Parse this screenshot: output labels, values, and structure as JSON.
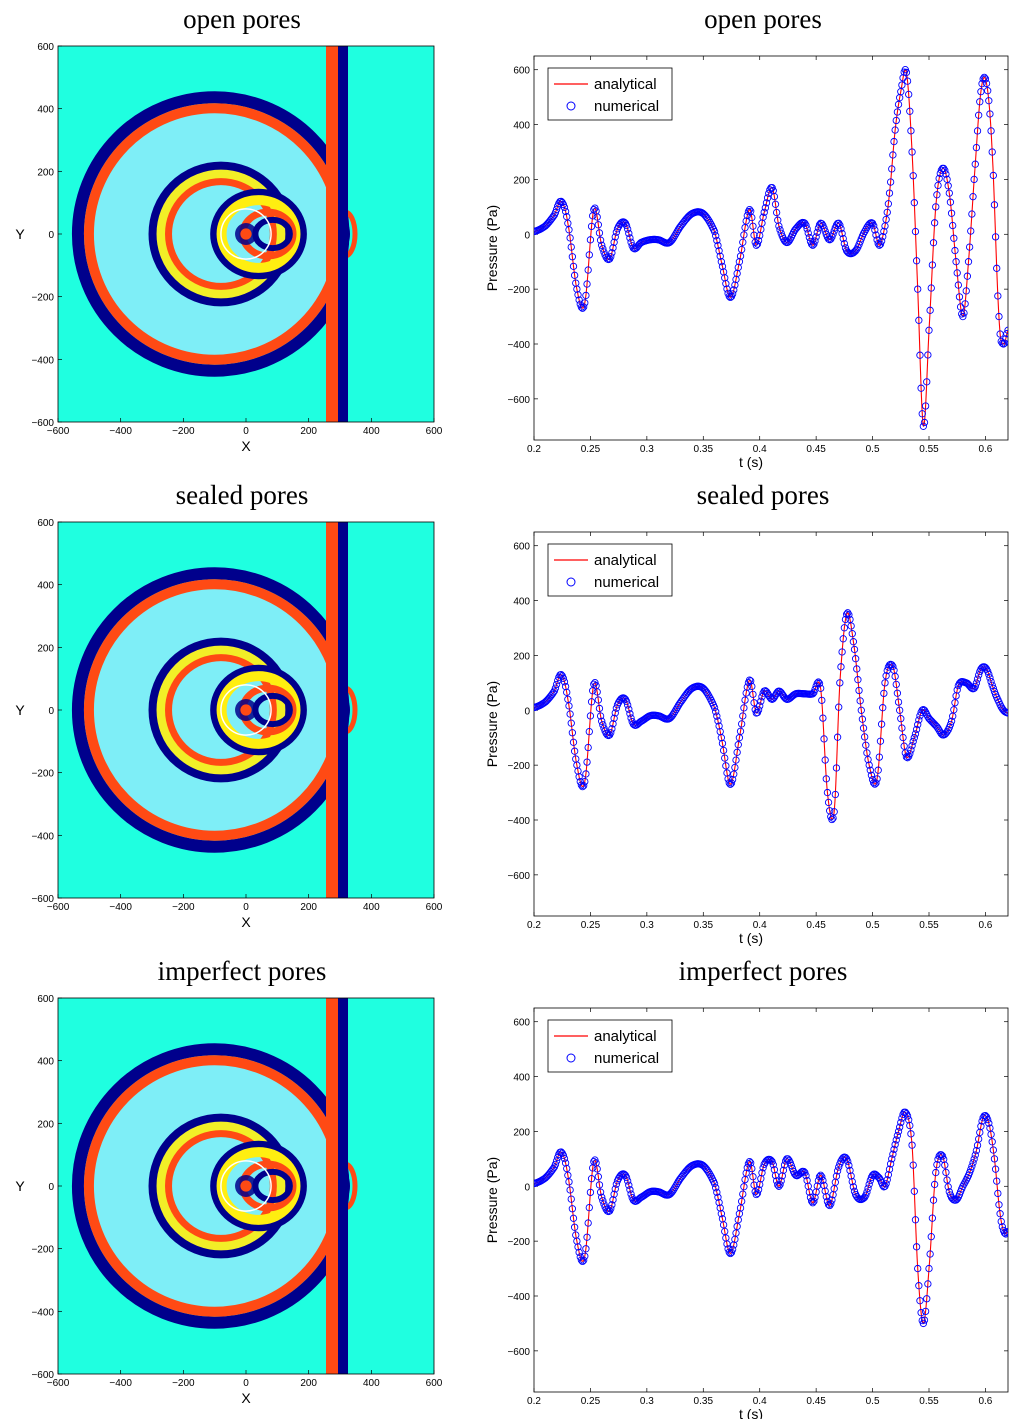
{
  "colors": {
    "analytical": "#ff0000",
    "numerical": "#0000ff",
    "field_background": "#1fffe0",
    "wavefront_red": "#ff4a14",
    "wavefront_navy": "#00008c",
    "field_yellow": "#ffee10",
    "field_lightblue": "#9fe8ff",
    "source_circle": "#ffffff"
  },
  "chart_data": [
    {
      "type": "heatmap",
      "title": "open pores",
      "xlabel": "X",
      "ylabel": "Y",
      "xlim": [
        -600,
        600
      ],
      "ylim": [
        -600,
        600
      ],
      "xticks": [
        -600,
        -400,
        -200,
        0,
        200,
        400,
        600
      ],
      "yticks": [
        -600,
        -400,
        -200,
        0,
        200,
        400,
        600
      ],
      "colormap": "jet",
      "interface_x": 300,
      "outer_wavefront_center": [
        -100,
        0
      ],
      "outer_wavefront_radius": 430,
      "inner_wavefront_radius": 245,
      "source_circle_center": [
        0,
        0
      ],
      "source_circle_radius": 80
    },
    {
      "type": "line",
      "title": "open pores",
      "xlabel": "t (s)",
      "ylabel": "Pressure (Pa)",
      "xlim": [
        0.2,
        0.62
      ],
      "ylim": [
        -750,
        650
      ],
      "xticks": [
        0.2,
        0.25,
        0.3,
        0.35,
        0.4,
        0.45,
        0.5,
        0.55,
        0.6
      ],
      "yticks": [
        -600,
        -400,
        -200,
        0,
        200,
        400,
        600
      ],
      "legend": "top-left",
      "series": [
        {
          "name": "analytical",
          "style": "line",
          "x": [
            0.2,
            0.21,
            0.218,
            0.224,
            0.23,
            0.238,
            0.245,
            0.253,
            0.26,
            0.267,
            0.274,
            0.281,
            0.288,
            0.295,
            0.303,
            0.31,
            0.32,
            0.33,
            0.34,
            0.35,
            0.36,
            0.366,
            0.374,
            0.382,
            0.391,
            0.397,
            0.404,
            0.411,
            0.417,
            0.424,
            0.432,
            0.44,
            0.447,
            0.454,
            0.462,
            0.47,
            0.477,
            0.485,
            0.493,
            0.5,
            0.506,
            0.511,
            0.515,
            0.52,
            0.525,
            0.53,
            0.535,
            0.54,
            0.545,
            0.55,
            0.556,
            0.562,
            0.568,
            0.574,
            0.58,
            0.585,
            0.59,
            0.596,
            0.601,
            0.606,
            0.612,
            0.616,
            0.62
          ],
          "y": [
            10,
            30,
            70,
            120,
            40,
            -200,
            -250,
            90,
            -40,
            -90,
            20,
            40,
            -50,
            -30,
            -20,
            -20,
            -30,
            30,
            75,
            75,
            10,
            -100,
            -230,
            -100,
            90,
            -40,
            80,
            170,
            30,
            -30,
            20,
            40,
            -40,
            40,
            -20,
            40,
            -60,
            -60,
            10,
            40,
            -40,
            30,
            150,
            380,
            520,
            590,
            300,
            -200,
            -700,
            -350,
            100,
            240,
            150,
            -100,
            -300,
            -100,
            200,
            520,
            550,
            300,
            -300,
            -400,
            -350
          ]
        },
        {
          "name": "numerical",
          "style": "markers-circle",
          "x": [
            0.2,
            0.21,
            0.218,
            0.224,
            0.23,
            0.238,
            0.245,
            0.253,
            0.26,
            0.267,
            0.274,
            0.281,
            0.288,
            0.295,
            0.303,
            0.31,
            0.32,
            0.33,
            0.34,
            0.35,
            0.36,
            0.366,
            0.374,
            0.382,
            0.391,
            0.397,
            0.404,
            0.411,
            0.417,
            0.424,
            0.432,
            0.44,
            0.447,
            0.454,
            0.462,
            0.47,
            0.477,
            0.485,
            0.493,
            0.5,
            0.506,
            0.511,
            0.515,
            0.52,
            0.525,
            0.53,
            0.535,
            0.54,
            0.545,
            0.55,
            0.556,
            0.562,
            0.568,
            0.574,
            0.58,
            0.585,
            0.59,
            0.596,
            0.601,
            0.606,
            0.612,
            0.616,
            0.62
          ],
          "y": [
            10,
            30,
            70,
            120,
            40,
            -200,
            -250,
            90,
            -40,
            -90,
            20,
            40,
            -50,
            -30,
            -20,
            -20,
            -30,
            30,
            75,
            75,
            10,
            -100,
            -230,
            -100,
            90,
            -40,
            80,
            170,
            30,
            -30,
            20,
            40,
            -40,
            40,
            -20,
            40,
            -60,
            -60,
            10,
            40,
            -40,
            30,
            150,
            380,
            520,
            590,
            300,
            -200,
            -700,
            -350,
            100,
            240,
            150,
            -100,
            -300,
            -100,
            200,
            520,
            550,
            300,
            -300,
            -400,
            -350
          ]
        }
      ]
    },
    {
      "type": "heatmap",
      "title": "sealed pores",
      "xlabel": "X",
      "ylabel": "Y",
      "xlim": [
        -600,
        600
      ],
      "ylim": [
        -600,
        600
      ],
      "xticks": [
        -600,
        -400,
        -200,
        0,
        200,
        400,
        600
      ],
      "yticks": [
        -600,
        -400,
        -200,
        0,
        200,
        400,
        600
      ],
      "colormap": "jet",
      "interface_x": 300,
      "outer_wavefront_center": [
        -100,
        0
      ],
      "outer_wavefront_radius": 430,
      "inner_wavefront_radius": 245,
      "source_circle_center": [
        0,
        0
      ],
      "source_circle_radius": 80
    },
    {
      "type": "line",
      "title": "sealed pores",
      "xlabel": "t (s)",
      "ylabel": "Pressure (Pa)",
      "xlim": [
        0.2,
        0.62
      ],
      "ylim": [
        -750,
        650
      ],
      "xticks": [
        0.2,
        0.25,
        0.3,
        0.35,
        0.4,
        0.45,
        0.5,
        0.55,
        0.6
      ],
      "yticks": [
        -600,
        -400,
        -200,
        0,
        200,
        400,
        600
      ],
      "legend": "top-left",
      "series": [
        {
          "name": "analytical",
          "style": "line",
          "x": [
            0.2,
            0.21,
            0.218,
            0.224,
            0.23,
            0.238,
            0.245,
            0.253,
            0.26,
            0.267,
            0.274,
            0.281,
            0.288,
            0.295,
            0.303,
            0.31,
            0.32,
            0.33,
            0.34,
            0.35,
            0.36,
            0.366,
            0.374,
            0.382,
            0.391,
            0.397,
            0.404,
            0.411,
            0.417,
            0.424,
            0.432,
            0.44,
            0.447,
            0.454,
            0.46,
            0.466,
            0.471,
            0.477,
            0.483,
            0.49,
            0.497,
            0.504,
            0.511,
            0.518,
            0.524,
            0.53,
            0.537,
            0.544,
            0.55,
            0.557,
            0.563,
            0.57,
            0.576,
            0.583,
            0.59,
            0.596,
            0.601,
            0.607,
            0.612,
            0.616,
            0.62
          ],
          "y": [
            10,
            30,
            70,
            130,
            40,
            -200,
            -260,
            95,
            -40,
            -90,
            20,
            40,
            -50,
            -40,
            -20,
            -20,
            -30,
            30,
            80,
            80,
            10,
            -100,
            -270,
            -100,
            110,
            -10,
            70,
            40,
            70,
            40,
            60,
            60,
            60,
            80,
            -300,
            -370,
            100,
            350,
            250,
            0,
            -200,
            -250,
            100,
            160,
            0,
            -170,
            -100,
            0,
            -30,
            -60,
            -90,
            -40,
            90,
            100,
            80,
            150,
            150,
            80,
            30,
            0,
            -10
          ]
        },
        {
          "name": "numerical",
          "style": "markers-circle",
          "x": [
            0.2,
            0.21,
            0.218,
            0.224,
            0.23,
            0.238,
            0.245,
            0.253,
            0.26,
            0.267,
            0.274,
            0.281,
            0.288,
            0.295,
            0.303,
            0.31,
            0.32,
            0.33,
            0.34,
            0.35,
            0.36,
            0.366,
            0.374,
            0.382,
            0.391,
            0.397,
            0.404,
            0.411,
            0.417,
            0.424,
            0.432,
            0.44,
            0.447,
            0.454,
            0.46,
            0.466,
            0.471,
            0.477,
            0.483,
            0.49,
            0.497,
            0.504,
            0.511,
            0.518,
            0.524,
            0.53,
            0.537,
            0.544,
            0.55,
            0.557,
            0.563,
            0.57,
            0.576,
            0.583,
            0.59,
            0.596,
            0.601,
            0.607,
            0.612,
            0.616,
            0.62
          ],
          "y": [
            10,
            30,
            70,
            130,
            40,
            -200,
            -260,
            95,
            -40,
            -90,
            20,
            40,
            -50,
            -40,
            -20,
            -20,
            -30,
            30,
            80,
            80,
            10,
            -100,
            -270,
            -100,
            110,
            -10,
            70,
            40,
            70,
            40,
            60,
            60,
            60,
            80,
            -300,
            -370,
            100,
            350,
            250,
            0,
            -200,
            -250,
            100,
            160,
            0,
            -170,
            -100,
            0,
            -30,
            -60,
            -90,
            -40,
            90,
            100,
            80,
            150,
            150,
            80,
            30,
            0,
            -10
          ]
        }
      ]
    },
    {
      "type": "heatmap",
      "title": "imperfect pores",
      "xlabel": "X",
      "ylabel": "Y",
      "xlim": [
        -600,
        600
      ],
      "ylim": [
        -600,
        600
      ],
      "xticks": [
        -600,
        -400,
        -200,
        0,
        200,
        400,
        600
      ],
      "yticks": [
        -600,
        -400,
        -200,
        0,
        200,
        400,
        600
      ],
      "colormap": "jet",
      "interface_x": 300,
      "outer_wavefront_center": [
        -100,
        0
      ],
      "outer_wavefront_radius": 430,
      "inner_wavefront_radius": 245,
      "source_circle_center": [
        0,
        0
      ],
      "source_circle_radius": 80
    },
    {
      "type": "line",
      "title": "imperfect pores",
      "xlabel": "t (s)",
      "ylabel": "Pressure (Pa)",
      "xlim": [
        0.2,
        0.62
      ],
      "ylim": [
        -750,
        650
      ],
      "xticks": [
        0.2,
        0.25,
        0.3,
        0.35,
        0.4,
        0.45,
        0.5,
        0.55,
        0.6
      ],
      "yticks": [
        -600,
        -400,
        -200,
        0,
        200,
        400,
        600
      ],
      "legend": "top-left",
      "series": [
        {
          "name": "analytical",
          "style": "line",
          "x": [
            0.2,
            0.21,
            0.218,
            0.224,
            0.23,
            0.238,
            0.245,
            0.253,
            0.26,
            0.267,
            0.274,
            0.281,
            0.288,
            0.295,
            0.303,
            0.31,
            0.32,
            0.33,
            0.34,
            0.35,
            0.36,
            0.366,
            0.374,
            0.382,
            0.391,
            0.397,
            0.404,
            0.411,
            0.417,
            0.424,
            0.432,
            0.44,
            0.447,
            0.454,
            0.462,
            0.47,
            0.477,
            0.485,
            0.493,
            0.5,
            0.506,
            0.511,
            0.517,
            0.523,
            0.529,
            0.535,
            0.54,
            0.545,
            0.55,
            0.556,
            0.562,
            0.568,
            0.574,
            0.58,
            0.586,
            0.592,
            0.598,
            0.603,
            0.608,
            0.613,
            0.617,
            0.62
          ],
          "y": [
            10,
            30,
            70,
            125,
            40,
            -200,
            -255,
            90,
            -40,
            -90,
            20,
            40,
            -50,
            -40,
            -20,
            -20,
            -30,
            30,
            75,
            75,
            10,
            -100,
            -245,
            -100,
            90,
            -30,
            80,
            90,
            0,
            100,
            40,
            50,
            -60,
            40,
            -70,
            70,
            100,
            -30,
            -40,
            40,
            30,
            0,
            100,
            200,
            270,
            150,
            -300,
            -500,
            -300,
            50,
            110,
            -20,
            -50,
            0,
            50,
            130,
            250,
            230,
            100,
            -100,
            -170,
            -165
          ]
        },
        {
          "name": "numerical",
          "style": "markers-circle",
          "x": [
            0.2,
            0.21,
            0.218,
            0.224,
            0.23,
            0.238,
            0.245,
            0.253,
            0.26,
            0.267,
            0.274,
            0.281,
            0.288,
            0.295,
            0.303,
            0.31,
            0.32,
            0.33,
            0.34,
            0.35,
            0.36,
            0.366,
            0.374,
            0.382,
            0.391,
            0.397,
            0.404,
            0.411,
            0.417,
            0.424,
            0.432,
            0.44,
            0.447,
            0.454,
            0.462,
            0.47,
            0.477,
            0.485,
            0.493,
            0.5,
            0.506,
            0.511,
            0.517,
            0.523,
            0.529,
            0.535,
            0.54,
            0.545,
            0.55,
            0.556,
            0.562,
            0.568,
            0.574,
            0.58,
            0.586,
            0.592,
            0.598,
            0.603,
            0.608,
            0.613,
            0.617,
            0.62
          ],
          "y": [
            10,
            30,
            70,
            125,
            40,
            -200,
            -255,
            90,
            -40,
            -90,
            20,
            40,
            -50,
            -40,
            -20,
            -20,
            -30,
            30,
            75,
            75,
            10,
            -100,
            -245,
            -100,
            90,
            -30,
            80,
            90,
            0,
            100,
            40,
            50,
            -60,
            40,
            -70,
            70,
            100,
            -30,
            -40,
            40,
            30,
            0,
            100,
            200,
            270,
            150,
            -300,
            -500,
            -300,
            50,
            110,
            -20,
            -50,
            0,
            50,
            130,
            250,
            230,
            100,
            -100,
            -170,
            -165
          ]
        }
      ]
    }
  ]
}
